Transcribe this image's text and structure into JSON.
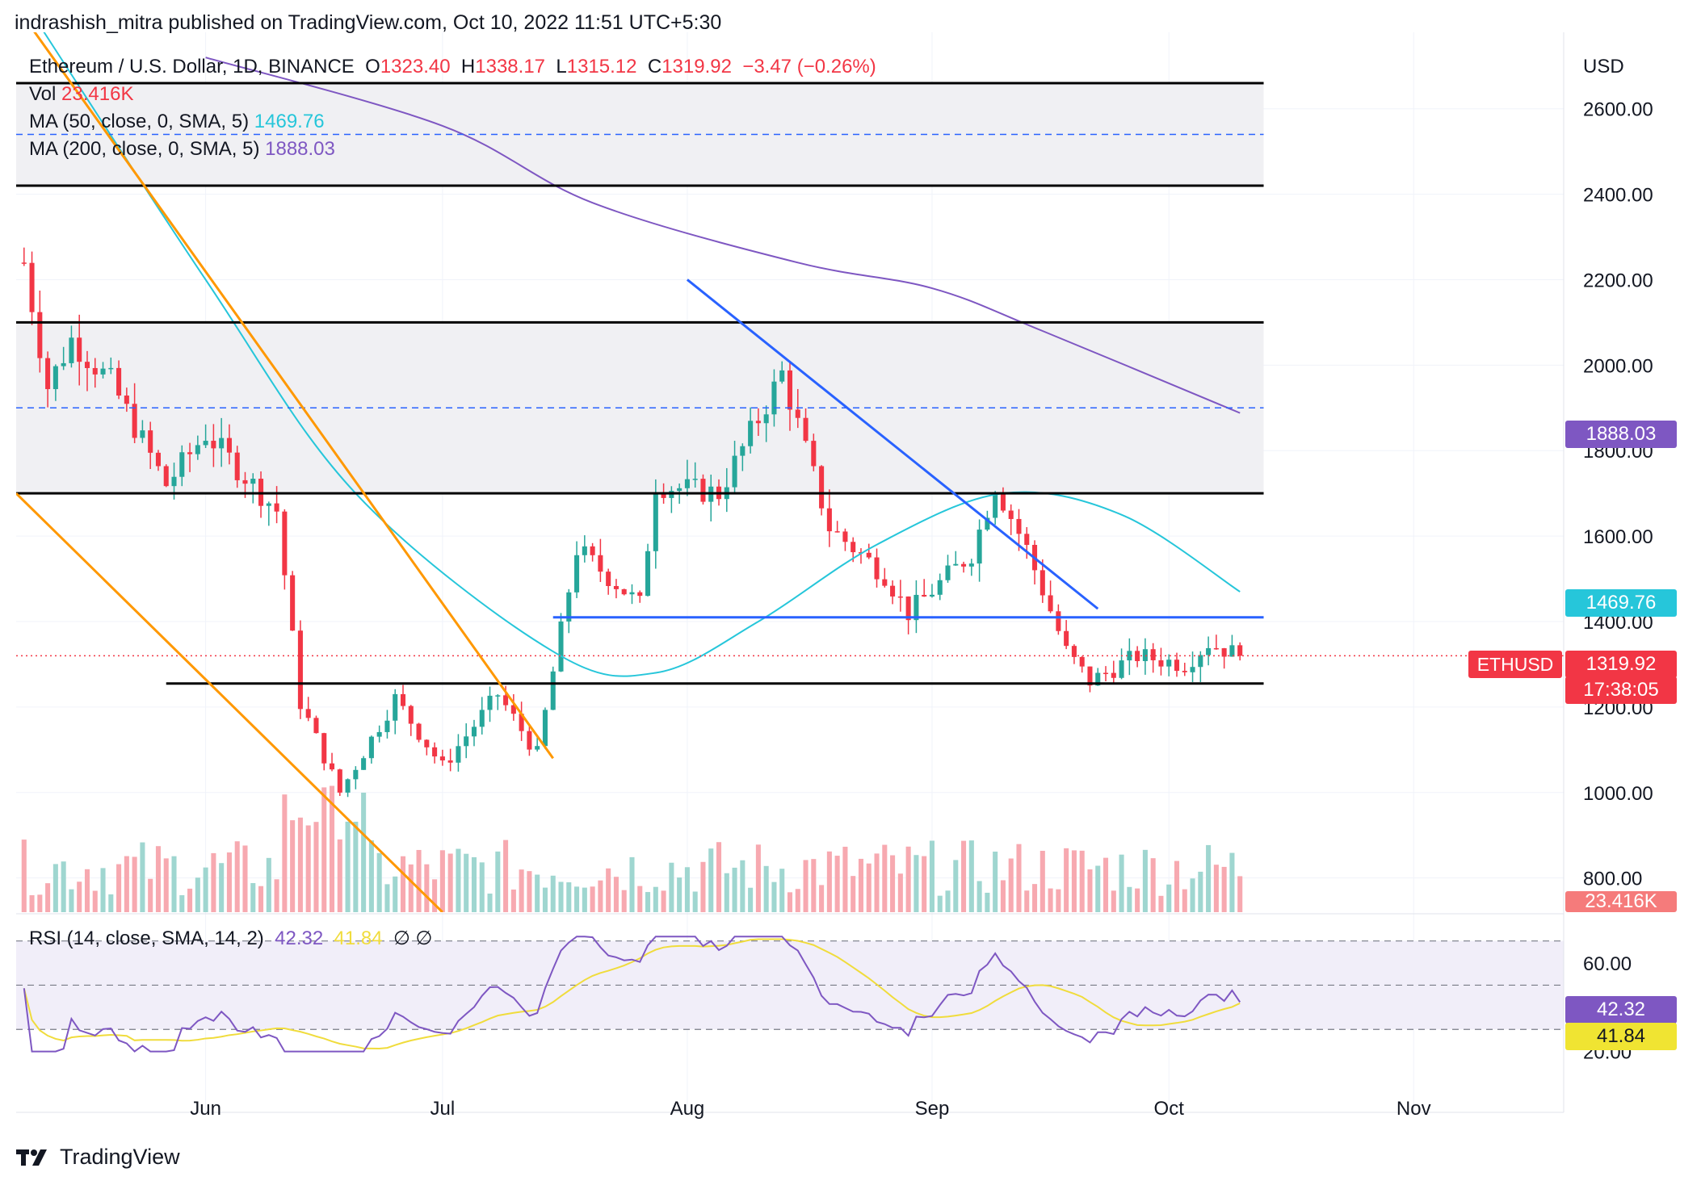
{
  "header": {
    "published": "indrashish_mitra published on TradingView.com, Oct 10, 2022 11:51 UTC+5:30"
  },
  "legend": {
    "symbol": "Ethereum / U.S. Dollar, 1D, BINANCE",
    "o_label": "O",
    "o": "1323.40",
    "h_label": "H",
    "h": "1338.17",
    "l_label": "L",
    "l": "1315.12",
    "c_label": "C",
    "c": "1319.92",
    "change": "−3.47 (−0.26%)",
    "vol_label": "Vol",
    "vol": "23.416K",
    "ma50_label": "MA (50, close, 0, SMA, 5)",
    "ma50": "1469.76",
    "ma200_label": "MA (200, close, 0, SMA, 5)",
    "ma200": "1888.03"
  },
  "rsi_legend": {
    "label": "RSI (14, close, SMA, 14, 2)",
    "rsi": "42.32",
    "rsi_ma": "41.84",
    "extra": "∅  ∅"
  },
  "price_axis": {
    "currency": "USD",
    "labels": [
      "2600.00",
      "2400.00",
      "2200.00",
      "2000.00",
      "1800.00",
      "1600.00",
      "1400.00",
      "1200.00",
      "1000.00",
      "800.00"
    ]
  },
  "rsi_axis": {
    "labels": [
      "60.00",
      "20.00"
    ]
  },
  "price_tags": {
    "ma200": "1888.03",
    "ma50": "1469.76",
    "symbol": "ETHUSD",
    "last": "1319.92",
    "countdown": "17:38:05",
    "volume": "23.416K",
    "rsi": "42.32",
    "rsi_ma": "41.84"
  },
  "time_axis": {
    "labels": [
      "Jun",
      "Jul",
      "Aug",
      "Sep",
      "Oct",
      "Nov"
    ]
  },
  "footer": {
    "brand": "TradingView"
  },
  "colors": {
    "up": "#26a69a",
    "down": "#f23645",
    "ma50": "#26c6da",
    "ma200": "#7e57c2",
    "trend_orange": "#ff9800",
    "trend_blue": "#2962ff",
    "rsi": "#7e57c2",
    "rsi_ma": "#f0dc3c"
  },
  "chart_data": {
    "type": "candlestick",
    "symbol": "ETHUSD",
    "interval": "1D",
    "y_range": [
      720,
      2760
    ],
    "x_range": [
      "2022-05-08",
      "2022-11-20"
    ],
    "ohlc_anchor_points": [
      {
        "date": "2022-05-09",
        "close": 2240
      },
      {
        "date": "2022-05-12",
        "close": 1950
      },
      {
        "date": "2022-05-15",
        "close": 2060
      },
      {
        "date": "2022-05-20",
        "close": 1960
      },
      {
        "date": "2022-05-27",
        "close": 1720
      },
      {
        "date": "2022-06-01",
        "close": 1840
      },
      {
        "date": "2022-06-10",
        "close": 1660
      },
      {
        "date": "2022-06-13",
        "close": 1210
      },
      {
        "date": "2022-06-18",
        "close": 1000
      },
      {
        "date": "2022-06-25",
        "close": 1220
      },
      {
        "date": "2022-07-01",
        "close": 1060
      },
      {
        "date": "2022-07-08",
        "close": 1230
      },
      {
        "date": "2022-07-13",
        "close": 1090
      },
      {
        "date": "2022-07-18",
        "close": 1570
      },
      {
        "date": "2022-07-26",
        "close": 1440
      },
      {
        "date": "2022-07-28",
        "close": 1720
      },
      {
        "date": "2022-08-05",
        "close": 1700
      },
      {
        "date": "2022-08-13",
        "close": 1980
      },
      {
        "date": "2022-08-19",
        "close": 1620
      },
      {
        "date": "2022-08-26",
        "close": 1510
      },
      {
        "date": "2022-08-29",
        "close": 1420
      },
      {
        "date": "2022-09-06",
        "close": 1560
      },
      {
        "date": "2022-09-09",
        "close": 1720
      },
      {
        "date": "2022-09-13",
        "close": 1570
      },
      {
        "date": "2022-09-18",
        "close": 1330
      },
      {
        "date": "2022-09-21",
        "close": 1260
      },
      {
        "date": "2022-09-27",
        "close": 1320
      },
      {
        "date": "2022-10-03",
        "close": 1300
      },
      {
        "date": "2022-10-06",
        "close": 1350
      },
      {
        "date": "2022-10-10",
        "close": 1319.92
      }
    ],
    "ma50_points": [
      {
        "date": "2022-05-08",
        "value": 2880
      },
      {
        "date": "2022-06-01",
        "value": 2200
      },
      {
        "date": "2022-06-20",
        "value": 1700
      },
      {
        "date": "2022-07-15",
        "value": 1330
      },
      {
        "date": "2022-07-28",
        "value": 1280
      },
      {
        "date": "2022-08-10",
        "value": 1400
      },
      {
        "date": "2022-08-25",
        "value": 1580
      },
      {
        "date": "2022-09-10",
        "value": 1700
      },
      {
        "date": "2022-09-25",
        "value": 1650
      },
      {
        "date": "2022-10-10",
        "value": 1469.76
      }
    ],
    "ma200_points": [
      {
        "date": "2022-06-01",
        "value": 2720
      },
      {
        "date": "2022-07-01",
        "value": 2560
      },
      {
        "date": "2022-07-20",
        "value": 2380
      },
      {
        "date": "2022-08-15",
        "value": 2240
      },
      {
        "date": "2022-09-01",
        "value": 2180
      },
      {
        "date": "2022-09-15",
        "value": 2080
      },
      {
        "date": "2022-10-10",
        "value": 1888.03
      }
    ],
    "horizontal_levels": [
      2660,
      2420,
      2100,
      1700,
      1410,
      1255
    ],
    "dashed_levels": [
      2540,
      1900
    ],
    "shaded_zones": [
      [
        2420,
        2660
      ],
      [
        1700,
        2100
      ]
    ],
    "trendlines": [
      {
        "color": "orange",
        "from": {
          "date": "2022-05-08",
          "price": 1700
        },
        "to": {
          "date": "2022-07-01",
          "price": 720
        }
      },
      {
        "color": "orange",
        "from": {
          "date": "2022-05-08",
          "price": 2840
        },
        "to": {
          "date": "2022-07-15",
          "price": 1080
        }
      },
      {
        "color": "blue",
        "from": {
          "date": "2022-08-01",
          "price": 2200
        },
        "to": {
          "date": "2022-09-22",
          "price": 1430
        }
      },
      {
        "color": "blue",
        "from": {
          "date": "2022-07-15",
          "price": 1410
        },
        "to": {
          "date": "2022-10-13",
          "price": 1410
        }
      }
    ],
    "rsi": {
      "range": [
        10,
        75
      ],
      "levels": [
        70,
        50,
        30
      ],
      "last": 42.32,
      "last_ma": 41.84
    },
    "last_volume": "23.416K"
  }
}
